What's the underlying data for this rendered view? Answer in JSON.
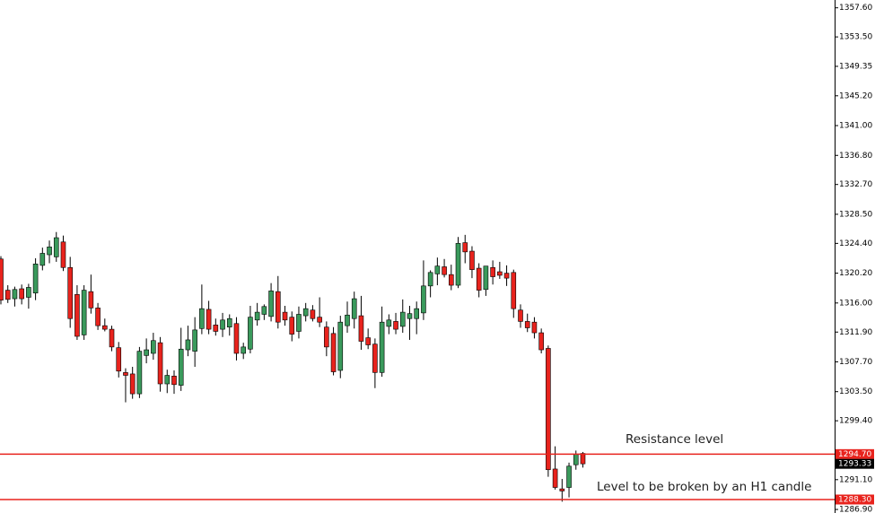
{
  "chart_data": {
    "type": "candlestick",
    "up_color": "#3a9a5c",
    "down_color": "#e8231d",
    "open": [
      1322.2,
      1317.8,
      1316.6,
      1318.0,
      1316.8,
      1317.4,
      1321.3,
      1322.8,
      1322.5,
      1324.6,
      1321.0,
      1317.2,
      1311.5,
      1317.6,
      1315.3,
      1312.8,
      1312.3,
      1309.7,
      1306.2,
      1306.0,
      1303.2,
      1308.6,
      1308.9,
      1310.4,
      1304.6,
      1305.7,
      1304.4,
      1309.4,
      1309.2,
      1312.4,
      1315.1,
      1312.9,
      1312.3,
      1312.6,
      1313.1,
      1308.9,
      1309.5,
      1313.6,
      1314.4,
      1314.1,
      1317.6,
      1314.7,
      1314.0,
      1312.0,
      1314.2,
      1315.0,
      1314.0,
      1312.6,
      1311.7,
      1306.5,
      1312.8,
      1313.8,
      1314.2,
      1311.1,
      1310.2,
      1306.2,
      1312.7,
      1313.4,
      1312.7,
      1313.8,
      1313.8,
      1314.6,
      1318.4,
      1320.1,
      1321.1,
      1320.0,
      1318.5,
      1324.5,
      1323.3,
      1320.9,
      1317.9,
      1321.0,
      1320.4,
      1320.2,
      1320.3,
      1315.0,
      1313.4,
      1313.3,
      1311.8,
      1309.6,
      1292.6,
      1289.8,
      1290.0,
      1293.2,
      1294.8
    ],
    "high": [
      1322.6,
      1318.5,
      1318.3,
      1318.6,
      1318.7,
      1322.3,
      1323.8,
      1324.8,
      1326.0,
      1325.5,
      1322.5,
      1318.5,
      1318.5,
      1320.0,
      1316.0,
      1313.8,
      1312.8,
      1310.5,
      1306.8,
      1307.0,
      1309.8,
      1311.0,
      1311.8,
      1311.2,
      1306.6,
      1306.5,
      1312.5,
      1312.8,
      1314.0,
      1318.6,
      1316.3,
      1313.8,
      1314.6,
      1314.4,
      1314.0,
      1310.4,
      1315.6,
      1316.0,
      1315.8,
      1318.8,
      1319.8,
      1315.6,
      1314.8,
      1315.5,
      1316.0,
      1315.7,
      1316.8,
      1313.4,
      1312.6,
      1314.2,
      1316.2,
      1317.6,
      1317.0,
      1312.4,
      1311.0,
      1315.5,
      1314.4,
      1314.6,
      1316.5,
      1315.6,
      1316.2,
      1322.0,
      1320.6,
      1322.4,
      1322.2,
      1321.4,
      1325.3,
      1325.6,
      1324.0,
      1321.6,
      1321.2,
      1322.0,
      1321.8,
      1321.3,
      1320.7,
      1315.8,
      1314.5,
      1314.0,
      1312.4,
      1310.0,
      1295.8,
      1291.2,
      1293.5,
      1295.2,
      1295.0
    ],
    "low": [
      1315.8,
      1316.0,
      1315.5,
      1315.8,
      1315.2,
      1316.4,
      1320.6,
      1321.6,
      1321.8,
      1320.5,
      1312.5,
      1310.8,
      1310.8,
      1314.5,
      1312.2,
      1312.0,
      1309.2,
      1305.5,
      1302.0,
      1302.5,
      1302.6,
      1307.5,
      1308.0,
      1303.5,
      1303.3,
      1303.2,
      1303.6,
      1308.5,
      1307.0,
      1311.6,
      1311.6,
      1311.4,
      1311.2,
      1311.4,
      1307.9,
      1308.1,
      1308.9,
      1312.8,
      1313.6,
      1313.4,
      1312.4,
      1312.8,
      1310.6,
      1311.0,
      1313.4,
      1313.4,
      1312.6,
      1308.5,
      1305.8,
      1305.4,
      1311.8,
      1312.4,
      1309.4,
      1309.5,
      1304.0,
      1305.6,
      1311.6,
      1311.6,
      1311.8,
      1310.8,
      1311.6,
      1313.6,
      1316.8,
      1318.5,
      1319.6,
      1317.8,
      1318.1,
      1321.6,
      1319.5,
      1316.8,
      1317.0,
      1318.6,
      1319.4,
      1318.4,
      1313.9,
      1312.5,
      1311.9,
      1311.0,
      1308.9,
      1291.5,
      1289.7,
      1288.0,
      1288.6,
      1292.5,
      1292.8
    ],
    "close": [
      1316.4,
      1316.5,
      1317.9,
      1316.6,
      1318.2,
      1321.5,
      1323.0,
      1323.9,
      1325.2,
      1321.0,
      1313.8,
      1311.3,
      1317.8,
      1315.3,
      1312.8,
      1312.3,
      1309.8,
      1306.4,
      1305.8,
      1303.2,
      1309.2,
      1309.4,
      1310.7,
      1304.6,
      1305.8,
      1304.5,
      1309.5,
      1310.8,
      1312.2,
      1315.2,
      1312.3,
      1312.0,
      1313.6,
      1313.8,
      1308.9,
      1309.8,
      1314.0,
      1314.7,
      1315.5,
      1317.7,
      1313.3,
      1313.6,
      1311.6,
      1314.4,
      1315.2,
      1313.8,
      1313.3,
      1309.8,
      1306.3,
      1313.3,
      1314.3,
      1316.6,
      1310.6,
      1310.1,
      1306.2,
      1313.3,
      1313.6,
      1312.3,
      1314.7,
      1314.5,
      1315.2,
      1318.4,
      1320.3,
      1321.2,
      1320.0,
      1318.5,
      1324.4,
      1323.2,
      1320.7,
      1317.8,
      1321.2,
      1319.7,
      1319.9,
      1319.5,
      1315.2,
      1313.4,
      1312.5,
      1311.8,
      1309.4,
      1292.5,
      1290.0,
      1289.5,
      1293.0,
      1294.7,
      1293.33
    ],
    "ylim": [
      1286.4,
      1358.7
    ],
    "yticks": [
      {
        "value": 1357.6,
        "label": "1357.60"
      },
      {
        "value": 1353.5,
        "label": "1353.50"
      },
      {
        "value": 1349.35,
        "label": "1349.35"
      },
      {
        "value": 1345.2,
        "label": "1345.20"
      },
      {
        "value": 1341.0,
        "label": "1341.00"
      },
      {
        "value": 1336.8,
        "label": "1336.80"
      },
      {
        "value": 1332.7,
        "label": "1332.70"
      },
      {
        "value": 1328.5,
        "label": "1328.50"
      },
      {
        "value": 1324.4,
        "label": "1324.40"
      },
      {
        "value": 1320.2,
        "label": "1320.20"
      },
      {
        "value": 1316.0,
        "label": "1316.00"
      },
      {
        "value": 1311.9,
        "label": "1311.90"
      },
      {
        "value": 1307.7,
        "label": "1307.70"
      },
      {
        "value": 1303.5,
        "label": "1303.50"
      },
      {
        "value": 1299.4,
        "label": "1299.40"
      },
      {
        "value": 1291.1,
        "label": "1291.10"
      },
      {
        "value": 1286.9,
        "label": "1286.90"
      }
    ],
    "levels": [
      {
        "value": 1294.7,
        "label": "1294.70",
        "color": "#e8231d"
      },
      {
        "value": 1288.3,
        "label": "1288.30",
        "color": "#e8231d"
      }
    ],
    "current_price": {
      "value": 1293.33,
      "label": "1293.33"
    },
    "annotations": [
      "Resistance level",
      "Level to be broken by an H1 candle"
    ]
  }
}
